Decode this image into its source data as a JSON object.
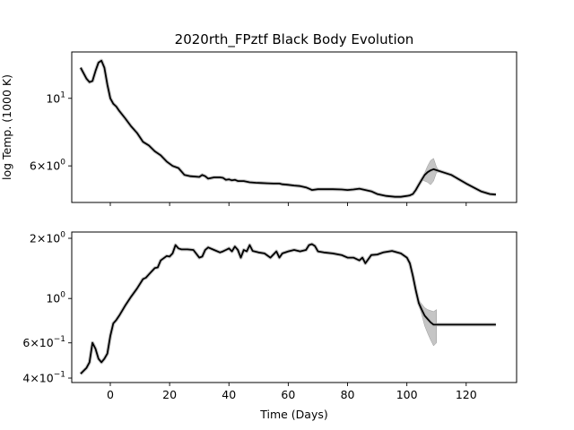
{
  "figure": {
    "title": "2020rth_FPztf Black Body Evolution"
  },
  "chart_data": [
    {
      "type": "line",
      "title": "2020rth_FPztf Black Body Evolution",
      "xlabel": "",
      "ylabel": "log Temp. (1000 K)",
      "yscale": "log",
      "xlim": [
        -13,
        137
      ],
      "ylim": [
        4.55,
        14.2
      ],
      "grid": false,
      "x_ticks": [
        0,
        20,
        40,
        60,
        80,
        100,
        120
      ],
      "y_ticks": [
        {
          "value": 10,
          "label": "10^1"
        },
        {
          "value": 6,
          "label": "6×10^0"
        }
      ],
      "line_color": "#000000",
      "band_color": "#bbbbbb",
      "series": [
        {
          "x": [
            -10,
            -8,
            -7,
            -6,
            -5,
            -4,
            -3,
            -2,
            -1,
            0,
            1,
            2,
            3,
            5,
            7,
            9,
            11,
            13,
            15,
            17,
            19,
            21,
            23,
            25,
            27,
            30,
            31,
            32,
            33,
            35,
            37,
            38,
            39,
            40,
            41,
            42,
            43,
            45,
            47,
            49,
            51,
            53,
            55,
            57,
            58,
            60,
            62,
            64,
            66,
            67,
            68,
            70,
            72,
            75,
            78,
            80,
            82,
            84,
            86,
            88,
            90,
            93,
            96,
            98,
            100,
            101,
            102,
            103,
            104,
            105,
            106,
            107,
            108,
            109,
            115,
            120,
            125,
            128,
            130
          ],
          "y": [
            12.6,
            11.6,
            11.3,
            11.4,
            12.3,
            13.1,
            13.3,
            12.6,
            11.1,
            10.0,
            9.6,
            9.4,
            9.1,
            8.6,
            8.1,
            7.7,
            7.2,
            7.0,
            6.7,
            6.5,
            6.2,
            6.0,
            5.9,
            5.6,
            5.55,
            5.52,
            5.6,
            5.55,
            5.45,
            5.5,
            5.5,
            5.48,
            5.4,
            5.42,
            5.38,
            5.4,
            5.35,
            5.35,
            5.3,
            5.28,
            5.27,
            5.26,
            5.25,
            5.25,
            5.22,
            5.2,
            5.17,
            5.15,
            5.1,
            5.05,
            5.0,
            5.03,
            5.03,
            5.03,
            5.02,
            5.0,
            5.02,
            5.05,
            5.0,
            4.95,
            4.85,
            4.78,
            4.75,
            4.75,
            4.78,
            4.8,
            4.85,
            5.0,
            5.2,
            5.4,
            5.6,
            5.72,
            5.8,
            5.85,
            5.6,
            5.25,
            4.95,
            4.85,
            4.83
          ],
          "band": [
            {
              "x": 105,
              "lower": 5.4,
              "upper": 5.4
            },
            {
              "x": 107,
              "lower": 5.3,
              "upper": 6.0
            },
            {
              "x": 108,
              "lower": 5.2,
              "upper": 6.25
            },
            {
              "x": 109,
              "lower": 5.35,
              "upper": 6.35
            },
            {
              "x": 110,
              "lower": 5.7,
              "upper": 5.95
            },
            {
              "x": 111,
              "lower": 5.75,
              "upper": 5.75
            }
          ]
        }
      ]
    },
    {
      "type": "line",
      "title": "",
      "xlabel": "Time (Days)",
      "ylabel": "",
      "yscale": "log",
      "xlim": [
        -13,
        137
      ],
      "ylim": [
        0.38,
        2.15
      ],
      "grid": false,
      "x_ticks": [
        0,
        20,
        40,
        60,
        80,
        100,
        120
      ],
      "y_ticks": [
        {
          "value": 2,
          "label": "2×10^0"
        },
        {
          "value": 1,
          "label": "10^0"
        },
        {
          "value": 0.6,
          "label": "6×10^−1"
        },
        {
          "value": 0.4,
          "label": "4×10^−1"
        }
      ],
      "line_color": "#000000",
      "band_color": "#bbbbbb",
      "series": [
        {
          "x": [
            -10,
            -8,
            -7,
            -6,
            -5,
            -4,
            -3,
            -2,
            -1,
            0,
            1,
            2,
            3,
            5,
            7,
            9,
            11,
            12,
            13,
            15,
            16,
            17,
            19,
            20,
            21,
            22,
            23,
            24,
            26,
            28,
            30,
            31,
            32,
            33,
            35,
            37,
            38,
            39,
            40,
            41,
            42,
            43,
            44,
            45,
            46,
            47,
            48,
            50,
            52,
            54,
            56,
            57,
            58,
            60,
            62,
            64,
            66,
            67,
            68,
            69,
            70,
            72,
            75,
            78,
            80,
            82,
            84,
            85,
            86,
            88,
            90,
            92,
            95,
            98,
            100,
            101,
            102,
            103,
            104,
            105,
            106,
            107,
            108,
            109,
            115,
            120,
            125,
            130
          ],
          "y": [
            0.42,
            0.45,
            0.48,
            0.6,
            0.56,
            0.5,
            0.48,
            0.5,
            0.53,
            0.65,
            0.75,
            0.78,
            0.82,
            0.92,
            1.02,
            1.12,
            1.25,
            1.27,
            1.32,
            1.42,
            1.43,
            1.55,
            1.63,
            1.62,
            1.68,
            1.85,
            1.78,
            1.76,
            1.76,
            1.75,
            1.6,
            1.62,
            1.75,
            1.8,
            1.75,
            1.7,
            1.72,
            1.75,
            1.78,
            1.72,
            1.82,
            1.75,
            1.6,
            1.75,
            1.72,
            1.85,
            1.73,
            1.7,
            1.68,
            1.6,
            1.72,
            1.6,
            1.68,
            1.72,
            1.75,
            1.72,
            1.75,
            1.85,
            1.87,
            1.83,
            1.72,
            1.7,
            1.68,
            1.65,
            1.6,
            1.6,
            1.55,
            1.6,
            1.5,
            1.65,
            1.66,
            1.7,
            1.73,
            1.68,
            1.6,
            1.5,
            1.3,
            1.1,
            0.95,
            0.88,
            0.82,
            0.79,
            0.76,
            0.74,
            0.74,
            0.74,
            0.74,
            0.74
          ],
          "band": [
            {
              "x": 103,
              "lower": 1.1,
              "upper": 1.1
            },
            {
              "x": 104,
              "lower": 0.93,
              "upper": 0.98
            },
            {
              "x": 105,
              "lower": 0.83,
              "upper": 0.94
            },
            {
              "x": 106,
              "lower": 0.73,
              "upper": 0.9
            },
            {
              "x": 107,
              "lower": 0.67,
              "upper": 0.88
            },
            {
              "x": 108,
              "lower": 0.62,
              "upper": 0.87
            },
            {
              "x": 109,
              "lower": 0.58,
              "upper": 0.86
            },
            {
              "x": 110,
              "lower": 0.6,
              "upper": 0.88
            }
          ]
        }
      ]
    }
  ]
}
